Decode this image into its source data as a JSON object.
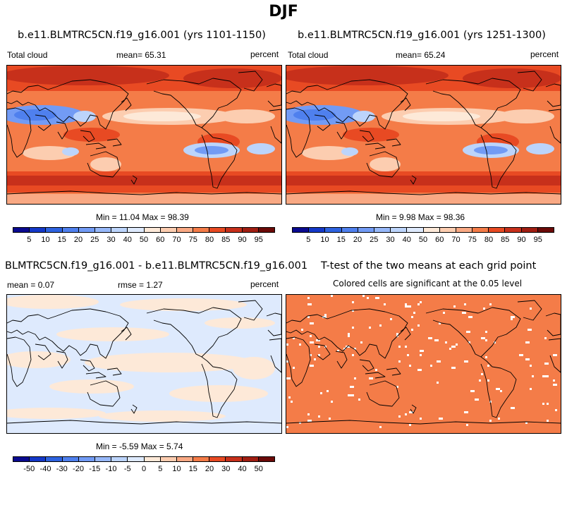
{
  "title": "DJF",
  "panels": {
    "p1": {
      "title": "b.e11.BLMTRC5CN.f19_g16.001 (yrs 1101-1150)",
      "left": "Total cloud",
      "center": "mean=  65.31",
      "right": "percent",
      "minmax": "Min =  11.04 Max =  98.39"
    },
    "p2": {
      "title": "b.e11.BLMTRC5CN.f19_g16.001 (yrs 1251-1300)",
      "left": "Total cloud",
      "center": "mean=  65.24",
      "right": "percent",
      "minmax": "Min =   9.98 Max =  98.36"
    },
    "p3": {
      "title": "BLMTRC5CN.f19_g16.001 - b.e11.BLMTRC5CN.f19_g16.001",
      "left": "mean =  0.07",
      "center": "rmse =  1.27",
      "right": "percent",
      "minmax": "Min =  -5.59 Max =   5.74"
    },
    "p4": {
      "title": "T-test of the two means at each grid point",
      "sub": "Colored cells are significant at the 0.05 level",
      "fill_color": "#f47c48"
    }
  },
  "colorbar_top": {
    "labels": [
      "5",
      "10",
      "15",
      "20",
      "25",
      "30",
      "40",
      "50",
      "60",
      "70",
      "75",
      "80",
      "85",
      "90",
      "95"
    ],
    "colors": [
      "#0a0a8f",
      "#1438c8",
      "#2e63e0",
      "#4f80ee",
      "#729bf5",
      "#97b8f9",
      "#bcd4fb",
      "#deeafd",
      "#fde9d8",
      "#fccdb0",
      "#f9a984",
      "#f47c48",
      "#e84a23",
      "#c7301b",
      "#a01e12",
      "#6b0a08"
    ]
  },
  "colorbar_bottom": {
    "labels": [
      "-50",
      "-40",
      "-30",
      "-20",
      "-15",
      "-10",
      "-5",
      "0",
      "5",
      "10",
      "15",
      "20",
      "30",
      "40",
      "50"
    ],
    "colors": [
      "#0a0a8f",
      "#1438c8",
      "#2e63e0",
      "#4f80ee",
      "#729bf5",
      "#97b8f9",
      "#bcd4fb",
      "#deeafd",
      "#fde9d8",
      "#fccdb0",
      "#f9a984",
      "#f47c48",
      "#e84a23",
      "#c7301b",
      "#a01e12",
      "#6b0a08"
    ]
  },
  "diff_field_colors": {
    "pos": "#fde9d8",
    "neg": "#deeafd"
  },
  "cloud_field_colors": {
    "high": "#e84a23",
    "mid": "#f47c48",
    "midlow": "#f9a984",
    "low": "#fccdb0",
    "vlow": "#fde9d8",
    "blue1": "#deeafd",
    "blue2": "#bcd4fb",
    "blue3": "#729bf5",
    "blue4": "#4f80ee",
    "dark": "#c7301b"
  }
}
